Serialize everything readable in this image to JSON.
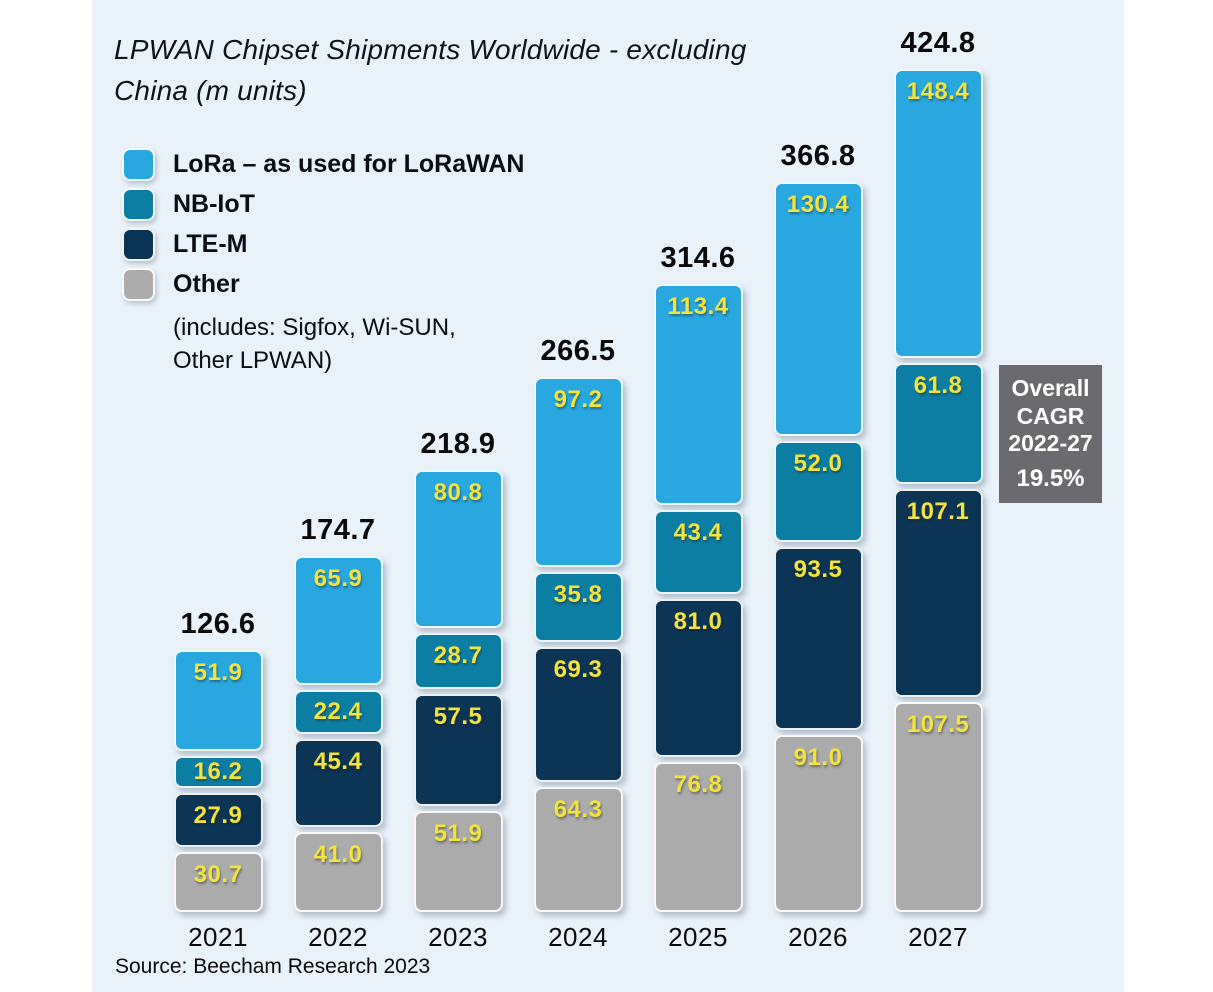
{
  "page": {
    "background": "#FFFFFF",
    "panel_background": "#E9F1F9"
  },
  "header": {
    "title_lines": [
      "LPWAN Chipset Shipments Worldwide - excluding",
      "China (m units)"
    ]
  },
  "legend": {
    "items": [
      {
        "label": "LoRa – as used for LoRaWAN",
        "color": "#29A8E0"
      },
      {
        "label": "NB-IoT",
        "color": "#0C7EA4"
      },
      {
        "label": "LTE-M",
        "color": "#0C3455"
      },
      {
        "label": "Other",
        "color": "#ABABAB"
      }
    ],
    "note_lines": [
      "(includes: Sigfox, Wi-SUN,",
      "Other LPWAN)"
    ]
  },
  "chart_data": {
    "type": "bar",
    "stacked": true,
    "title": "LPWAN Chipset Shipments Worldwide - excluding China (m units)",
    "categories": [
      "2021",
      "2022",
      "2023",
      "2024",
      "2025",
      "2026",
      "2027"
    ],
    "series": [
      {
        "name": "LoRa – as used for LoRaWAN",
        "color": "#29A8E0",
        "values": [
          51.9,
          65.9,
          80.8,
          97.2,
          113.4,
          130.4,
          148.4
        ]
      },
      {
        "name": "NB-IoT",
        "color": "#0C7EA4",
        "values": [
          16.2,
          22.4,
          28.7,
          35.8,
          43.4,
          52.0,
          61.8
        ]
      },
      {
        "name": "LTE-M",
        "color": "#0C3455",
        "values": [
          27.9,
          45.4,
          57.5,
          69.3,
          81.0,
          93.5,
          107.1
        ]
      },
      {
        "name": "Other",
        "color": "#ABABAB",
        "values": [
          30.7,
          41.0,
          51.9,
          64.3,
          76.8,
          91.0,
          107.5
        ]
      }
    ],
    "totals": [
      126.6,
      174.7,
      218.9,
      266.5,
      314.6,
      366.8,
      424.8
    ],
    "value_label_color": "#F2E33D",
    "total_label_color": "#0A0A0A",
    "legend_position": "top-left",
    "grid": false,
    "ylim": [
      0,
      424.8
    ]
  },
  "annotation": {
    "label": "Overall CAGR 2022-27",
    "value": "19.5%",
    "background": "#6B6A6E",
    "text_color": "#FFFFFF"
  },
  "source": "Source: Beecham Research 2023"
}
